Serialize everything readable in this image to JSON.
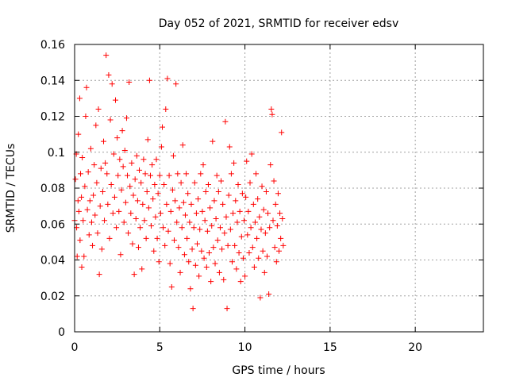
{
  "chart_data": {
    "type": "scatter",
    "title": "Day 052 of 2021, SRMTID for receiver edsv",
    "xlabel": "GPS time / hours",
    "ylabel": "SRMTID / TECUs",
    "xlim": [
      0,
      24
    ],
    "ylim": [
      0,
      0.16
    ],
    "xticks": [
      0,
      5,
      10,
      15,
      20
    ],
    "yticks": [
      0,
      0.02,
      0.04,
      0.06,
      0.08,
      0.1,
      0.12,
      0.14,
      0.16
    ],
    "grid": true,
    "marker": "plus",
    "color": "#ff0000",
    "series": [
      {
        "points": [
          [
            0.0,
            0.062
          ],
          [
            0.05,
            0.085
          ],
          [
            0.1,
            0.099
          ],
          [
            0.12,
            0.058
          ],
          [
            0.15,
            0.042
          ],
          [
            0.2,
            0.073
          ],
          [
            0.22,
            0.11
          ],
          [
            0.25,
            0.067
          ],
          [
            0.3,
            0.13
          ],
          [
            0.32,
            0.051
          ],
          [
            0.35,
            0.088
          ],
          [
            0.4,
            0.075
          ],
          [
            0.42,
            0.036
          ],
          [
            0.45,
            0.097
          ],
          [
            0.5,
            0.062
          ],
          [
            0.55,
            0.042
          ],
          [
            0.6,
            0.081
          ],
          [
            0.65,
            0.12
          ],
          [
            0.7,
            0.136
          ],
          [
            0.75,
            0.068
          ],
          [
            0.8,
            0.089
          ],
          [
            0.85,
            0.054
          ],
          [
            0.9,
            0.073
          ],
          [
            0.95,
            0.102
          ],
          [
            1.0,
            0.061
          ],
          [
            1.05,
            0.048
          ],
          [
            1.1,
            0.076
          ],
          [
            1.15,
            0.093
          ],
          [
            1.2,
            0.065
          ],
          [
            1.25,
            0.115
          ],
          [
            1.3,
            0.083
          ],
          [
            1.35,
            0.055
          ],
          [
            1.4,
            0.124
          ],
          [
            1.45,
            0.032
          ],
          [
            1.5,
            0.07
          ],
          [
            1.55,
            0.091
          ],
          [
            1.6,
            0.046
          ],
          [
            1.65,
            0.078
          ],
          [
            1.7,
            0.106
          ],
          [
            1.75,
            0.062
          ],
          [
            1.8,
            0.094
          ],
          [
            1.85,
            0.154
          ],
          [
            1.9,
            0.088
          ],
          [
            1.95,
            0.071
          ],
          [
            2.0,
            0.143
          ],
          [
            2.05,
            0.052
          ],
          [
            2.1,
            0.118
          ],
          [
            2.15,
            0.082
          ],
          [
            2.2,
            0.138
          ],
          [
            2.25,
            0.066
          ],
          [
            2.3,
            0.099
          ],
          [
            2.35,
            0.075
          ],
          [
            2.4,
            0.129
          ],
          [
            2.45,
            0.058
          ],
          [
            2.5,
            0.108
          ],
          [
            2.55,
            0.087
          ],
          [
            2.6,
            0.067
          ],
          [
            2.65,
            0.096
          ],
          [
            2.7,
            0.043
          ],
          [
            2.75,
            0.079
          ],
          [
            2.8,
            0.112
          ],
          [
            2.85,
            0.092
          ],
          [
            2.9,
            0.061
          ],
          [
            2.95,
            0.101
          ],
          [
            3.0,
            0.072
          ],
          [
            3.05,
            0.119
          ],
          [
            3.1,
            0.087
          ],
          [
            3.15,
            0.055
          ],
          [
            3.2,
            0.139
          ],
          [
            3.25,
            0.081
          ],
          [
            3.3,
            0.066
          ],
          [
            3.35,
            0.094
          ],
          [
            3.4,
            0.049
          ],
          [
            3.45,
            0.076
          ],
          [
            3.5,
            0.032
          ],
          [
            3.55,
            0.085
          ],
          [
            3.6,
            0.063
          ],
          [
            3.65,
            0.098
          ],
          [
            3.7,
            0.073
          ],
          [
            3.75,
            0.047
          ],
          [
            3.8,
            0.09
          ],
          [
            3.85,
            0.058
          ],
          [
            3.9,
            0.083
          ],
          [
            3.95,
            0.035
          ],
          [
            4.0,
            0.071
          ],
          [
            4.05,
            0.096
          ],
          [
            4.1,
            0.062
          ],
          [
            4.15,
            0.088
          ],
          [
            4.2,
            0.052
          ],
          [
            4.25,
            0.078
          ],
          [
            4.3,
            0.107
          ],
          [
            4.35,
            0.069
          ],
          [
            4.4,
            0.14
          ],
          [
            4.45,
            0.087
          ],
          [
            4.5,
            0.059
          ],
          [
            4.55,
            0.093
          ],
          [
            4.6,
            0.074
          ],
          [
            4.65,
            0.045
          ],
          [
            4.7,
            0.082
          ],
          [
            4.75,
            0.064
          ],
          [
            4.8,
            0.096
          ],
          [
            4.85,
            0.052
          ],
          [
            4.9,
            0.077
          ],
          [
            4.95,
            0.039
          ],
          [
            5.0,
            0.087
          ],
          [
            5.05,
            0.066
          ],
          [
            5.1,
            0.103
          ],
          [
            5.15,
            0.114
          ],
          [
            5.2,
            0.058
          ],
          [
            5.25,
            0.082
          ],
          [
            5.3,
            0.048
          ],
          [
            5.35,
            0.124
          ],
          [
            5.4,
            0.071
          ],
          [
            5.45,
            0.141
          ],
          [
            5.5,
            0.056
          ],
          [
            5.55,
            0.087
          ],
          [
            5.6,
            0.038
          ],
          [
            5.65,
            0.067
          ],
          [
            5.7,
            0.025
          ],
          [
            5.75,
            0.079
          ],
          [
            5.8,
            0.098
          ],
          [
            5.85,
            0.051
          ],
          [
            5.9,
            0.073
          ],
          [
            5.95,
            0.138
          ],
          [
            6.0,
            0.061
          ],
          [
            6.05,
            0.088
          ],
          [
            6.1,
            0.047
          ],
          [
            6.15,
            0.069
          ],
          [
            6.2,
            0.033
          ],
          [
            6.25,
            0.083
          ],
          [
            6.3,
            0.058
          ],
          [
            6.35,
            0.104
          ],
          [
            6.4,
            0.072
          ],
          [
            6.45,
            0.043
          ],
          [
            6.5,
            0.065
          ],
          [
            6.55,
            0.088
          ],
          [
            6.6,
            0.052
          ],
          [
            6.65,
            0.077
          ],
          [
            6.7,
            0.039
          ],
          [
            6.75,
            0.061
          ],
          [
            6.8,
            0.024
          ],
          [
            6.85,
            0.071
          ],
          [
            6.9,
            0.046
          ],
          [
            6.95,
            0.013
          ],
          [
            7.0,
            0.058
          ],
          [
            7.05,
            0.083
          ],
          [
            7.1,
            0.037
          ],
          [
            7.15,
            0.066
          ],
          [
            7.2,
            0.049
          ],
          [
            7.25,
            0.074
          ],
          [
            7.3,
            0.031
          ],
          [
            7.35,
            0.057
          ],
          [
            7.4,
            0.088
          ],
          [
            7.45,
            0.045
          ],
          [
            7.5,
            0.067
          ],
          [
            7.55,
            0.093
          ],
          [
            7.6,
            0.041
          ],
          [
            7.65,
            0.062
          ],
          [
            7.7,
            0.078
          ],
          [
            7.75,
            0.036
          ],
          [
            7.8,
            0.056
          ],
          [
            7.85,
            0.082
          ],
          [
            7.9,
            0.044
          ],
          [
            7.95,
            0.069
          ],
          [
            8.0,
            0.028
          ],
          [
            8.05,
            0.059
          ],
          [
            8.1,
            0.106
          ],
          [
            8.15,
            0.047
          ],
          [
            8.2,
            0.073
          ],
          [
            8.25,
            0.038
          ],
          [
            8.3,
            0.063
          ],
          [
            8.35,
            0.087
          ],
          [
            8.4,
            0.051
          ],
          [
            8.45,
            0.078
          ],
          [
            8.5,
            0.033
          ],
          [
            8.55,
            0.058
          ],
          [
            8.6,
            0.084
          ],
          [
            8.65,
            0.046
          ],
          [
            8.7,
            0.071
          ],
          [
            8.75,
            0.029
          ],
          [
            8.8,
            0.055
          ],
          [
            8.85,
            0.117
          ],
          [
            8.9,
            0.064
          ],
          [
            8.95,
            0.013
          ],
          [
            9.0,
            0.048
          ],
          [
            9.05,
            0.076
          ],
          [
            9.1,
            0.103
          ],
          [
            9.15,
            0.057
          ],
          [
            9.2,
            0.088
          ],
          [
            9.25,
            0.039
          ],
          [
            9.3,
            0.066
          ],
          [
            9.35,
            0.094
          ],
          [
            9.4,
            0.048
          ],
          [
            9.45,
            0.073
          ],
          [
            9.5,
            0.035
          ],
          [
            9.55,
            0.061
          ],
          [
            9.6,
            0.082
          ],
          [
            9.65,
            0.044
          ],
          [
            9.7,
            0.067
          ],
          [
            9.75,
            0.028
          ],
          [
            9.8,
            0.053
          ],
          [
            9.85,
            0.077
          ],
          [
            9.9,
            0.041
          ],
          [
            9.95,
            0.062
          ],
          [
            10.0,
            0.031
          ],
          [
            10.05,
            0.075
          ],
          [
            10.1,
            0.095
          ],
          [
            10.15,
            0.054
          ],
          [
            10.2,
            0.067
          ],
          [
            10.25,
            0.044
          ],
          [
            10.3,
            0.083
          ],
          [
            10.35,
            0.058
          ],
          [
            10.4,
            0.099
          ],
          [
            10.45,
            0.047
          ],
          [
            10.5,
            0.071
          ],
          [
            10.55,
            0.036
          ],
          [
            10.6,
            0.061
          ],
          [
            10.65,
            0.088
          ],
          [
            10.7,
            0.052
          ],
          [
            10.75,
            0.074
          ],
          [
            10.8,
            0.041
          ],
          [
            10.85,
            0.064
          ],
          [
            10.9,
            0.019
          ],
          [
            10.95,
            0.057
          ],
          [
            11.0,
            0.081
          ],
          [
            11.05,
            0.045
          ],
          [
            11.1,
            0.068
          ],
          [
            11.15,
            0.033
          ],
          [
            11.2,
            0.055
          ],
          [
            11.25,
            0.078
          ],
          [
            11.3,
            0.042
          ],
          [
            11.35,
            0.066
          ],
          [
            11.4,
            0.021
          ],
          [
            11.45,
            0.058
          ],
          [
            11.5,
            0.093
          ],
          [
            11.55,
            0.124
          ],
          [
            11.6,
            0.121
          ],
          [
            11.65,
            0.062
          ],
          [
            11.7,
            0.084
          ],
          [
            11.75,
            0.047
          ],
          [
            11.8,
            0.071
          ],
          [
            11.85,
            0.039
          ],
          [
            11.9,
            0.059
          ],
          [
            11.95,
            0.077
          ],
          [
            12.0,
            0.045
          ],
          [
            12.05,
            0.066
          ],
          [
            12.1,
            0.052
          ],
          [
            12.15,
            0.111
          ],
          [
            12.2,
            0.063
          ],
          [
            12.25,
            0.048
          ]
        ]
      }
    ]
  }
}
